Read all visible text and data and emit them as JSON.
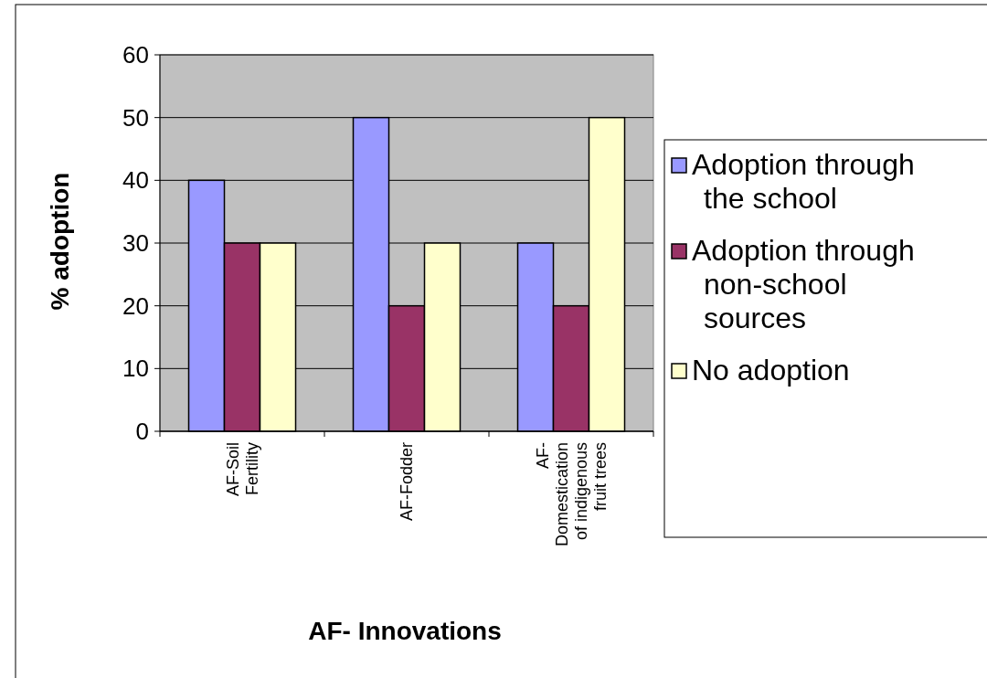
{
  "chart_data": {
    "type": "bar",
    "xlabel": "AF- Innovations",
    "ylabel": "% adoption",
    "categories": [
      "AF-Soil Fertility",
      "AF-Fodder",
      "AF-Domestication of indigenous fruit trees"
    ],
    "series": [
      {
        "name": "Adoption through the school",
        "color": "#9999ff",
        "values": [
          40,
          50,
          30
        ]
      },
      {
        "name": "Adoption through non-school sources",
        "color": "#993366",
        "values": [
          30,
          20,
          20
        ]
      },
      {
        "name": "No adoption",
        "color": "#ffffcc",
        "values": [
          30,
          30,
          50
        ]
      }
    ],
    "ylim": [
      0,
      60
    ],
    "yticks": [
      0,
      10,
      20,
      30,
      40,
      50,
      60
    ],
    "grid": "y",
    "legend": "right"
  }
}
